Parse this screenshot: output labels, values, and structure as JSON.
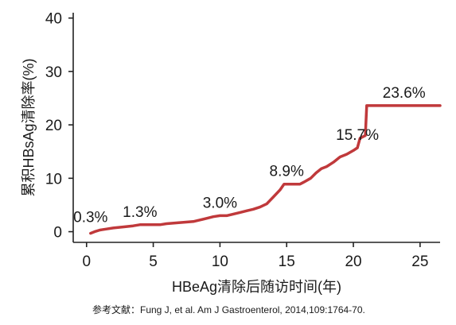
{
  "chart_data": {
    "type": "line",
    "xlabel": "HBeAg清除后随访时间(年)",
    "ylabel": "累积HBsAg清除率(%)",
    "xlim": [
      -1,
      26.5
    ],
    "ylim": [
      -2,
      41
    ],
    "x_ticks": [
      0,
      5,
      10,
      15,
      20,
      25
    ],
    "y_ticks": [
      0,
      10,
      20,
      30,
      40
    ],
    "grid": false,
    "series": [
      {
        "color": "#c0393b",
        "points": [
          [
            0.3,
            -0.3
          ],
          [
            0.6,
            0.0
          ],
          [
            1.0,
            0.3
          ],
          [
            1.5,
            0.5
          ],
          [
            2.0,
            0.7
          ],
          [
            2.8,
            0.9
          ],
          [
            3.5,
            1.1
          ],
          [
            4.0,
            1.3
          ],
          [
            4.5,
            1.3
          ],
          [
            5.5,
            1.3
          ],
          [
            6.0,
            1.5
          ],
          [
            7.0,
            1.7
          ],
          [
            8.0,
            1.9
          ],
          [
            8.5,
            2.2
          ],
          [
            9.0,
            2.5
          ],
          [
            9.5,
            2.8
          ],
          [
            10.0,
            3.0
          ],
          [
            10.5,
            3.0
          ],
          [
            11.0,
            3.3
          ],
          [
            11.5,
            3.6
          ],
          [
            12.0,
            3.9
          ],
          [
            12.5,
            4.2
          ],
          [
            13.0,
            4.6
          ],
          [
            13.5,
            5.2
          ],
          [
            14.0,
            6.5
          ],
          [
            14.5,
            7.8
          ],
          [
            14.8,
            8.9
          ],
          [
            15.5,
            8.9
          ],
          [
            16.0,
            8.9
          ],
          [
            16.3,
            9.3
          ],
          [
            16.8,
            10.0
          ],
          [
            17.2,
            11.0
          ],
          [
            17.6,
            11.8
          ],
          [
            18.0,
            12.2
          ],
          [
            18.5,
            13.0
          ],
          [
            19.0,
            14.0
          ],
          [
            19.5,
            14.5
          ],
          [
            20.0,
            15.2
          ],
          [
            20.3,
            15.7
          ],
          [
            20.5,
            17.5
          ],
          [
            20.9,
            18.0
          ],
          [
            21.0,
            23.6
          ],
          [
            26.5,
            23.6
          ]
        ]
      }
    ],
    "annotations": [
      {
        "text": "0.3%",
        "x": 0.3,
        "y": 0.3
      },
      {
        "text": "1.3%",
        "x": 4.0,
        "y": 1.3
      },
      {
        "text": "3.0%",
        "x": 10.0,
        "y": 3.0
      },
      {
        "text": "8.9%",
        "x": 15.0,
        "y": 8.9
      },
      {
        "text": "15.7%",
        "x": 20.3,
        "y": 15.7
      },
      {
        "text": "23.6%",
        "x": 23.8,
        "y": 23.6
      }
    ]
  },
  "reference": "参考文献：Fung J, et al. Am J Gastroenterol, 2014,109:1764-70."
}
